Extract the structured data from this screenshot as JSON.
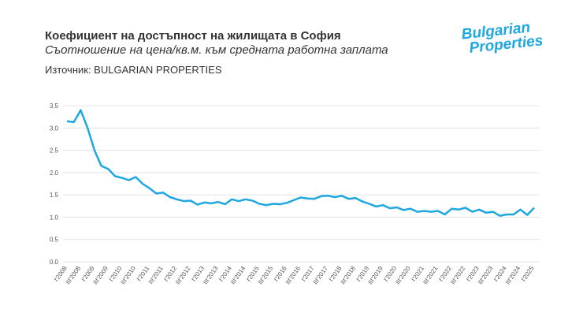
{
  "chart_data": {
    "type": "line",
    "title": "Коефициент на достъпност на жилищата в София",
    "subtitle": "Съотношение на цена/кв.м. към средната работна заплата",
    "source": "Източник: BULGARIAN PROPERTIES",
    "logo": [
      "Bulgarian",
      "Properties"
    ],
    "categories": [
      "I'2008",
      null,
      "III'2008",
      null,
      "I'2009",
      null,
      "III'2009",
      null,
      "I'2010",
      null,
      "III'2010",
      null,
      "I'2011",
      null,
      "III'2011",
      null,
      "I'2012",
      null,
      "III'2012",
      null,
      "I'2013",
      null,
      "III'2013",
      null,
      "I'2014",
      null,
      "III'2014",
      null,
      "I'2015",
      null,
      "III'2015",
      null,
      "I'2016",
      null,
      "III'2016",
      null,
      "I'2017",
      null,
      "III'2017",
      null,
      "I'2018",
      null,
      "III'2018",
      null,
      "I'2019",
      null,
      "III'2019",
      null,
      "I'2020",
      null,
      "III'2020",
      null,
      "I'2021",
      null,
      "III'2021",
      null,
      "I'2022",
      null,
      "III'2022",
      null,
      "I'2023",
      null,
      "III'2023",
      null,
      "I'2024",
      null,
      "III'2024",
      null,
      "I'2025"
    ],
    "series": [
      {
        "name": "Коефициент",
        "color": "#1ea7e1",
        "values": [
          3.15,
          3.13,
          3.4,
          3.0,
          2.5,
          2.15,
          2.08,
          1.92,
          1.88,
          1.83,
          1.9,
          1.75,
          1.65,
          1.53,
          1.55,
          1.45,
          1.4,
          1.36,
          1.37,
          1.28,
          1.33,
          1.31,
          1.34,
          1.29,
          1.4,
          1.36,
          1.4,
          1.37,
          1.3,
          1.27,
          1.3,
          1.29,
          1.32,
          1.38,
          1.44,
          1.42,
          1.41,
          1.47,
          1.48,
          1.45,
          1.48,
          1.41,
          1.43,
          1.35,
          1.3,
          1.24,
          1.27,
          1.2,
          1.22,
          1.16,
          1.19,
          1.12,
          1.14,
          1.12,
          1.14,
          1.06,
          1.19,
          1.17,
          1.21,
          1.12,
          1.17,
          1.1,
          1.12,
          1.03,
          1.06,
          1.06,
          1.17,
          1.05,
          1.21
        ]
      }
    ],
    "ylim": [
      0,
      3.5
    ],
    "yticks": [
      {
        "value": 0,
        "label": "0.0"
      },
      0.5,
      {
        "value": 1,
        "label": "1.0"
      },
      1.5,
      {
        "value": 2,
        "label": "2.0"
      },
      2.5,
      {
        "value": 3,
        "label": "3.0"
      },
      3.5
    ],
    "grid": true
  }
}
